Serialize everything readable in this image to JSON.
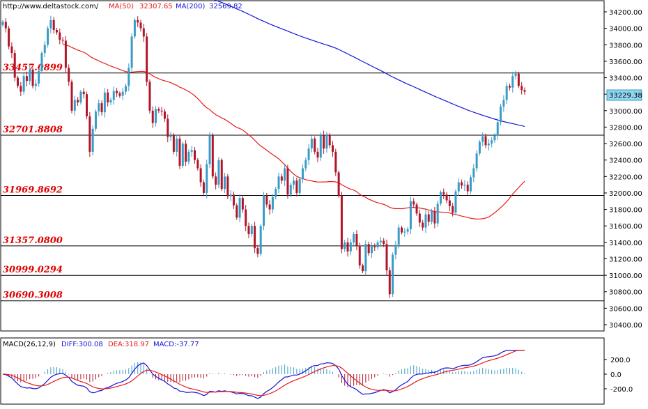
{
  "header": {
    "url": "http://www.deltastock.com/",
    "ma50_label": "MA(50)",
    "ma50_value": "32307.65",
    "ma200_label": "MA(200)",
    "ma200_value": "32569.82"
  },
  "price_panel": {
    "last_price": "33229.38",
    "y_ticks": [
      "34200.00",
      "34000.00",
      "33800.00",
      "33600.00",
      "33400.00",
      "33200.00",
      "33000.00",
      "32800.00",
      "32600.00",
      "32400.00",
      "32200.00",
      "32000.00",
      "31800.00",
      "31600.00",
      "31400.00",
      "31200.00",
      "31000.00",
      "30800.00",
      "30600.00",
      "30400.00"
    ],
    "levels": [
      "33457.0899",
      "32701.8808",
      "31969.8692",
      "31357.0800",
      "30999.0294",
      "30690.3008"
    ]
  },
  "macd_panel": {
    "title": "MACD(26,12,9)",
    "diff_label": "DIFF:300.08",
    "dea_label": "DEA:318.97",
    "macd_label": "MACD:-37.77",
    "y_ticks": [
      "200.0",
      "0.0",
      "-200.0"
    ]
  },
  "colors": {
    "up": "#3a9bc7",
    "down": "#b0162a",
    "ma50": "#e8191a",
    "ma200": "#1414d8",
    "diff": "#1414d8",
    "dea": "#e8191a",
    "level_text": "#e00000",
    "last_price_bg": "#8ed6f0"
  },
  "chart_data": {
    "type": "candlestick",
    "price_ylim": [
      30300,
      34300
    ],
    "levels": [
      33457.0899,
      32701.8808,
      31969.8692,
      31357.08,
      30999.0294,
      30690.3008
    ],
    "closes": [
      34080,
      34000,
      33780,
      33700,
      33400,
      33300,
      33230,
      33420,
      33360,
      33500,
      33300,
      33330,
      33480,
      33700,
      33800,
      34000,
      34100,
      33980,
      33950,
      33860,
      33850,
      33520,
      33350,
      33000,
      33130,
      33100,
      33230,
      33200,
      32930,
      32500,
      32780,
      32990,
      33090,
      32980,
      33220,
      33100,
      33130,
      33240,
      33210,
      33180,
      33230,
      33300,
      33520,
      33900,
      34100,
      34070,
      34000,
      33900,
      33350,
      33000,
      32850,
      33020,
      33000,
      32990,
      32900,
      32680,
      32700,
      32500,
      32660,
      32330,
      32600,
      32380,
      32500,
      32520,
      32400,
      32300,
      32130,
      32000,
      32350,
      32700,
      32200,
      32100,
      32400,
      32050,
      32200,
      31960,
      31980,
      31850,
      31700,
      31940,
      31800,
      31600,
      31500,
      31600,
      31330,
      31260,
      31600,
      31970,
      31860,
      31800,
      31950,
      32050,
      32200,
      32150,
      32300,
      31980,
      32100,
      32150,
      32000,
      32170,
      32300,
      32400,
      32540,
      32660,
      32500,
      32430,
      32700,
      32540,
      32700,
      32580,
      32500,
      32250,
      31970,
      31320,
      31400,
      31290,
      31400,
      31500,
      31360,
      31120,
      31050,
      31380,
      31270,
      31350,
      31340,
      31400,
      31420,
      31380,
      31060,
      30770,
      31250,
      31370,
      31580,
      31520,
      31530,
      31560,
      31900,
      31860,
      31750,
      31640,
      31580,
      31740,
      31650,
      31780,
      31630,
      31870,
      32010,
      31980,
      31910,
      31840,
      31760,
      32020,
      32130,
      32090,
      32100,
      32020,
      32190,
      32300,
      32480,
      32620,
      32690,
      32580,
      32600,
      32640,
      32700,
      32860,
      33050,
      33130,
      33300,
      33280,
      33420,
      33450,
      33300,
      33250,
      33230
    ]
  }
}
